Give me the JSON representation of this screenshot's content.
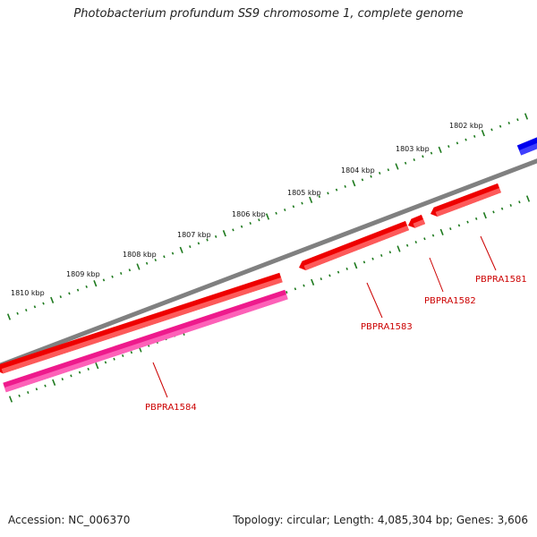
{
  "title": "Photobacterium profundum SS9 chromosome 1, complete genome",
  "footer": {
    "accession": "Accession: NC_006370",
    "summary": "Topology: circular; Length: 4,085,304 bp; Genes: 3,606"
  },
  "colors": {
    "backbone": "#808080",
    "tick": "#1e7a1e",
    "gene_cds": "#ee0000",
    "gene_cds_light": "#ff6a6a",
    "gene_other": "#ee1a8c",
    "gene_other_light": "#ff6fc0",
    "gene_blue": "#0000ee",
    "label": "#cc0000"
  },
  "kbp_labels": [
    "1802 kbp",
    "1803 kbp",
    "1804 kbp",
    "1805 kbp",
    "1806 kbp",
    "1807 kbp",
    "1808 kbp",
    "1809 kbp",
    "1810 kbp"
  ],
  "genes": [
    {
      "label": "PBPRA1581"
    },
    {
      "label": "PBPRA1582"
    },
    {
      "label": "PBPRA1583"
    },
    {
      "label": "PBPRA1584"
    }
  ]
}
